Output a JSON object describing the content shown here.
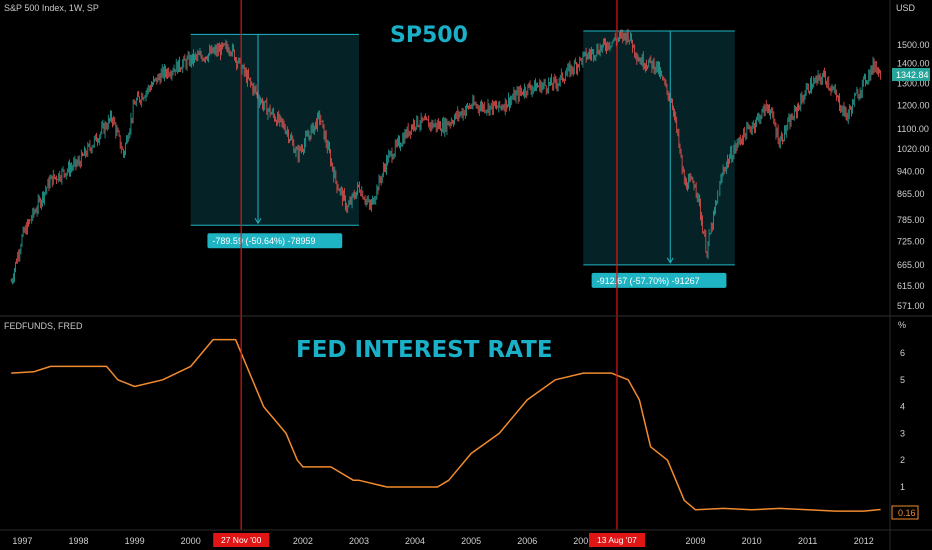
{
  "colors": {
    "background": "#000000",
    "box_fill": "#06272b",
    "box_stroke": "#1fb4c4",
    "label_bg": "#1fb4c4",
    "vline": "#e01515",
    "fed_line": "#f28a2e",
    "candle_up": "#26a69a",
    "candle_down": "#ef5350",
    "price_badge": "#26a69a",
    "rate_badge_stroke": "#f28a2e"
  },
  "top_panel": {
    "symbol": "S&P 500 Index, 1W, SP",
    "title": "SP500",
    "currency": "USD",
    "current_price": "1342.84",
    "y_ticks": [
      "1500.00",
      "1400.00",
      "1300.00",
      "1200.00",
      "1100.00",
      "1020.00",
      "940.00",
      "865.00",
      "785.00",
      "725.00",
      "665.00",
      "615.00",
      "571.00"
    ],
    "drawdown_labels": [
      "-789.59 (-50.64%) -78959",
      "-912.67 (-57.70%) -91267"
    ]
  },
  "bottom_panel": {
    "symbol": "FEDFUNDS, FRED",
    "title": "FED INTEREST RATE",
    "unit": "%",
    "current_value": "0.16",
    "y_ticks": [
      "6",
      "5",
      "4",
      "3",
      "2",
      "1"
    ]
  },
  "x_axis": {
    "labels": [
      "1997",
      "1998",
      "1999",
      "2000",
      "2002",
      "2003",
      "2004",
      "2005",
      "2006",
      "2007",
      "08",
      "2009",
      "2010",
      "2011",
      "2012"
    ],
    "markers": [
      "27 Nov '00",
      "13 Aug '07"
    ]
  },
  "chart_data": [
    {
      "type": "line",
      "title": "SP500",
      "name": "S&P 500 Index, 1W, SP",
      "x": [
        1996.8,
        1997.0,
        1997.5,
        1998.0,
        1998.6,
        1998.8,
        1999.0,
        1999.5,
        2000.0,
        2000.2,
        2000.7,
        2001.0,
        2001.3,
        2001.7,
        2001.9,
        2002.3,
        2002.6,
        2002.8,
        2003.0,
        2003.2,
        2003.5,
        2004.0,
        2004.5,
        2005.0,
        2005.5,
        2006.0,
        2006.5,
        2007.0,
        2007.5,
        2007.8,
        2008.0,
        2008.3,
        2008.6,
        2008.8,
        2009.0,
        2009.2,
        2009.5,
        2009.8,
        2010.0,
        2010.3,
        2010.5,
        2010.8,
        2011.0,
        2011.3,
        2011.7,
        2011.9,
        2012.2,
        2012.3
      ],
      "y": [
        625,
        740,
        910,
        970,
        1150,
        1000,
        1210,
        1350,
        1420,
        1440,
        1490,
        1330,
        1200,
        1100,
        1000,
        1150,
        900,
        820,
        890,
        820,
        980,
        1130,
        1110,
        1200,
        1190,
        1280,
        1300,
        1430,
        1520,
        1560,
        1420,
        1390,
        1200,
        900,
        900,
        700,
        950,
        1060,
        1110,
        1200,
        1050,
        1180,
        1280,
        1340,
        1150,
        1260,
        1400,
        1342.84
      ]
    },
    {
      "type": "line",
      "title": "FED INTEREST RATE",
      "name": "FEDFUNDS, FRED",
      "x": [
        1996.8,
        1997.2,
        1997.5,
        1998.0,
        1998.5,
        1998.7,
        1999.0,
        1999.5,
        2000.0,
        2000.4,
        2000.8,
        2001.0,
        2001.3,
        2001.7,
        2001.9,
        2002.0,
        2002.5,
        2002.9,
        2003.0,
        2003.5,
        2004.0,
        2004.4,
        2004.6,
        2005.0,
        2005.5,
        2006.0,
        2006.5,
        2007.0,
        2007.5,
        2007.8,
        2008.0,
        2008.2,
        2008.5,
        2008.8,
        2009.0,
        2009.5,
        2010.0,
        2010.5,
        2011.0,
        2011.5,
        2012.0,
        2012.3
      ],
      "y": [
        5.25,
        5.3,
        5.5,
        5.5,
        5.5,
        5.0,
        4.75,
        5.0,
        5.5,
        6.5,
        6.5,
        5.5,
        4.0,
        3.0,
        2.0,
        1.75,
        1.75,
        1.25,
        1.25,
        1.0,
        1.0,
        1.0,
        1.25,
        2.25,
        3.0,
        4.25,
        5.0,
        5.25,
        5.25,
        5.0,
        4.25,
        2.5,
        2.0,
        0.5,
        0.15,
        0.2,
        0.15,
        0.2,
        0.15,
        0.1,
        0.1,
        0.16
      ],
      "ylim": [
        0,
        7
      ],
      "ylabel": "%"
    }
  ],
  "drawdowns": [
    {
      "x0": 2000.0,
      "x1": 2003.0,
      "peak": 1560,
      "trough": 770,
      "arrow_x": 2001.2
    },
    {
      "x0": 2007.0,
      "x1": 2009.7,
      "peak": 1580,
      "trough": 665,
      "arrow_x": 2008.55
    }
  ],
  "markers": [
    2000.9,
    2007.6
  ],
  "x_axis_label_positions": [
    1997.0,
    1998.0,
    1999.0,
    2000.0,
    2002.0,
    2003.0,
    2004.0,
    2005.0,
    2006.0,
    2007.0,
    2008.0,
    2009.0,
    2010.0,
    2011.0,
    2012.0
  ]
}
